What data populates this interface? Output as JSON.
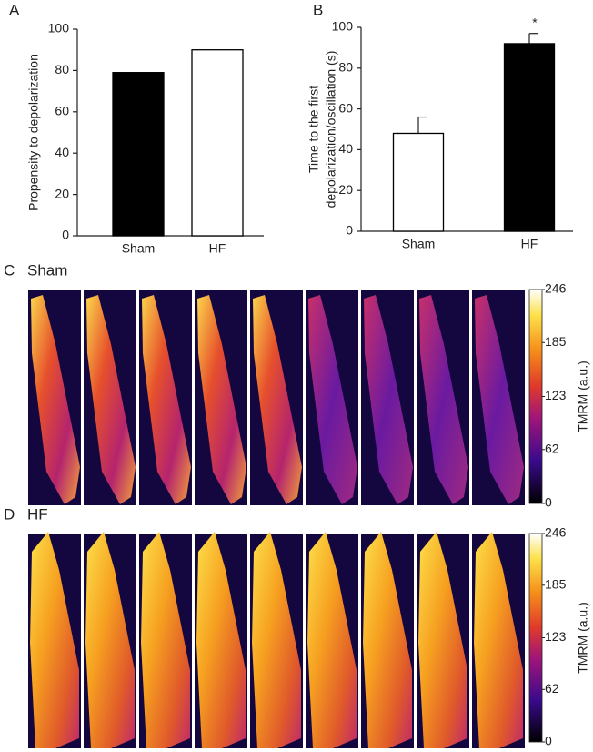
{
  "chart_data": [
    {
      "type": "bar",
      "panel": "A",
      "ylabel": "Propensity to depolarization",
      "categories": [
        "Sham",
        "HF"
      ],
      "values": [
        79,
        90
      ],
      "colors": [
        "#000000",
        "#ffffff"
      ],
      "ylim": [
        0,
        100
      ],
      "yticks": [
        0,
        20,
        40,
        60,
        80,
        100
      ]
    },
    {
      "type": "bar",
      "panel": "B",
      "ylabel": [
        "Time to the first",
        "depolarization/oscillation (s)"
      ],
      "categories": [
        "Sham",
        "HF"
      ],
      "values": [
        48,
        92
      ],
      "errors": [
        8,
        5
      ],
      "annotations": [
        null,
        "*"
      ],
      "colors": [
        "#ffffff",
        "#000000"
      ],
      "ylim": [
        0,
        100
      ],
      "yticks": [
        0,
        20,
        40,
        60,
        80,
        100
      ]
    }
  ],
  "image_panels": [
    {
      "panel": "C",
      "title": "Sham",
      "colorbar": {
        "label": "TMRM (a.u.)",
        "lim": [
          0,
          246
        ],
        "ticks": [
          0,
          62,
          123,
          185,
          246
        ]
      }
    },
    {
      "panel": "D",
      "title": "HF",
      "colorbar": {
        "label": "TMRM (a.u.)",
        "lim": [
          0,
          246
        ],
        "ticks": [
          0,
          62,
          123,
          185,
          246
        ]
      }
    }
  ]
}
